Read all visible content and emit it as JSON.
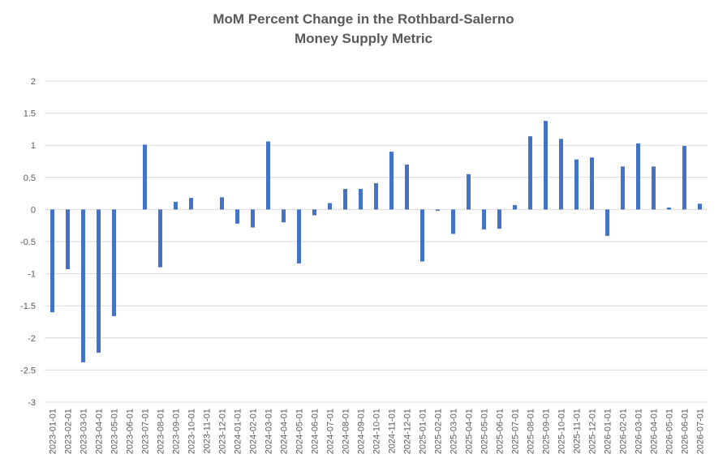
{
  "chart_data": {
    "type": "bar",
    "title_line1": "MoM Percent Change in the Rothbard-Salerno",
    "title_line2": "Money Supply Metric",
    "xlabel": "",
    "ylabel": "",
    "ylim": [
      -3,
      2
    ],
    "yticks": [
      2,
      1.5,
      1,
      0.5,
      0,
      -0.5,
      -1,
      -1.5,
      -2,
      -2.5,
      -3
    ],
    "grid": true,
    "color": "#4472C4",
    "categories": [
      "2023-01-01",
      "2023-02-01",
      "2023-03-01",
      "2023-04-01",
      "2023-05-01",
      "2023-06-01",
      "2023-07-01",
      "2023-08-01",
      "2023-09-01",
      "2023-10-01",
      "2023-11-01",
      "2023-12-01",
      "2024-01-01",
      "2024-02-01",
      "2024-03-01",
      "2024-04-01",
      "2024-05-01",
      "2024-06-01",
      "2024-07-01",
      "2024-08-01",
      "2024-09-01",
      "2024-10-01",
      "2024-11-01",
      "2024-12-01",
      "2025-01-01",
      "2025-02-01",
      "2025-03-01",
      "2025-04-01",
      "2025-05-01",
      "2025-06-01",
      "2025-07-01",
      "2025-08-01",
      "2025-09-01",
      "2025-10-01",
      "2025-11-01",
      "2025-12-01",
      "2026-01-01",
      "2026-02-01",
      "2026-03-01",
      "2026-04-01",
      "2026-05-01",
      "2026-06-01",
      "2026-07-01"
    ],
    "values": [
      -1.6,
      -0.93,
      -2.38,
      -2.23,
      -1.66,
      0.0,
      1.01,
      -0.9,
      0.12,
      0.18,
      0.0,
      0.19,
      -0.22,
      -0.28,
      1.06,
      -0.2,
      -0.84,
      -0.09,
      0.1,
      0.32,
      0.32,
      0.41,
      0.9,
      0.7,
      -0.81,
      -0.02,
      -0.38,
      0.55,
      -0.31,
      -0.3,
      0.07,
      1.14,
      1.38,
      1.1,
      0.78,
      0.81,
      -0.41,
      0.67,
      1.03,
      0.67,
      0.03,
      0.99,
      0.09
    ]
  }
}
